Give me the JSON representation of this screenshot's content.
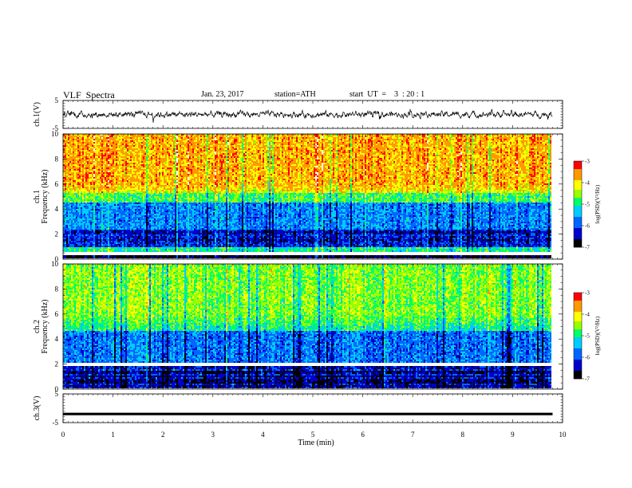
{
  "header": {
    "title": "VLF  Spectra",
    "date": "Jan. 23, 2017",
    "station": "station=ATH",
    "start": "start  UT  =    3  : 20 : 1"
  },
  "chart_data": [
    {
      "type": "line",
      "panel": "ch1-waveform",
      "ylabel": "ch.1(V)",
      "ylim": [
        -5,
        5
      ],
      "y_ticks": [
        "5",
        "-5"
      ],
      "xlim": [
        0,
        10
      ],
      "description_trace": "noisy signal fluctuating roughly between -2 and 2 V over 0 to 9.8 min"
    },
    {
      "type": "heatmap",
      "panel": "ch1-spectrogram",
      "ylabel_top": "ch.1",
      "ylabel": "Frequency  (kHz)",
      "ylim": [
        0,
        10
      ],
      "y_ticks": [
        "0",
        "2",
        "4",
        "6",
        "8",
        "10"
      ],
      "xlim": [
        0,
        10
      ],
      "data_end_min": 9.8,
      "colorbar": {
        "label": "log(PSD)(V²/Hz)",
        "range": [
          -7,
          -3
        ],
        "ticks": [
          "-3",
          "-4",
          "-5",
          "-6",
          "-7"
        ]
      }
    },
    {
      "type": "heatmap",
      "panel": "ch2-spectrogram",
      "ylabel_top": "ch.2",
      "ylabel": "Frequency  (kHz)",
      "ylim": [
        0,
        10
      ],
      "y_ticks": [
        "0",
        "2",
        "4",
        "6",
        "8",
        "10"
      ],
      "xlim": [
        0,
        10
      ],
      "data_end_min": 9.8,
      "colorbar": {
        "label": "log(PSD)(V²/Hz)",
        "range": [
          -7,
          -3
        ],
        "ticks": [
          "-3",
          "-4",
          "-5",
          "-6",
          "-7"
        ]
      }
    },
    {
      "type": "line",
      "panel": "ch3-waveform",
      "ylabel": "ch.3(V)",
      "ylim": [
        -5,
        5
      ],
      "y_ticks": [
        "5",
        "-5"
      ],
      "xlim": [
        0,
        10
      ],
      "constant_value": -2
    }
  ],
  "x_axis": {
    "label": "Time  (min)",
    "ticks": [
      "0",
      "1",
      "2",
      "3",
      "4",
      "5",
      "6",
      "7",
      "8",
      "9",
      "10"
    ]
  },
  "colors": {
    "scale": [
      "#000000",
      "#0000cc",
      "#0066ff",
      "#00ccff",
      "#00ff66",
      "#99ff00",
      "#ffff00",
      "#ff9900",
      "#ff0000",
      "#ffffff"
    ]
  }
}
